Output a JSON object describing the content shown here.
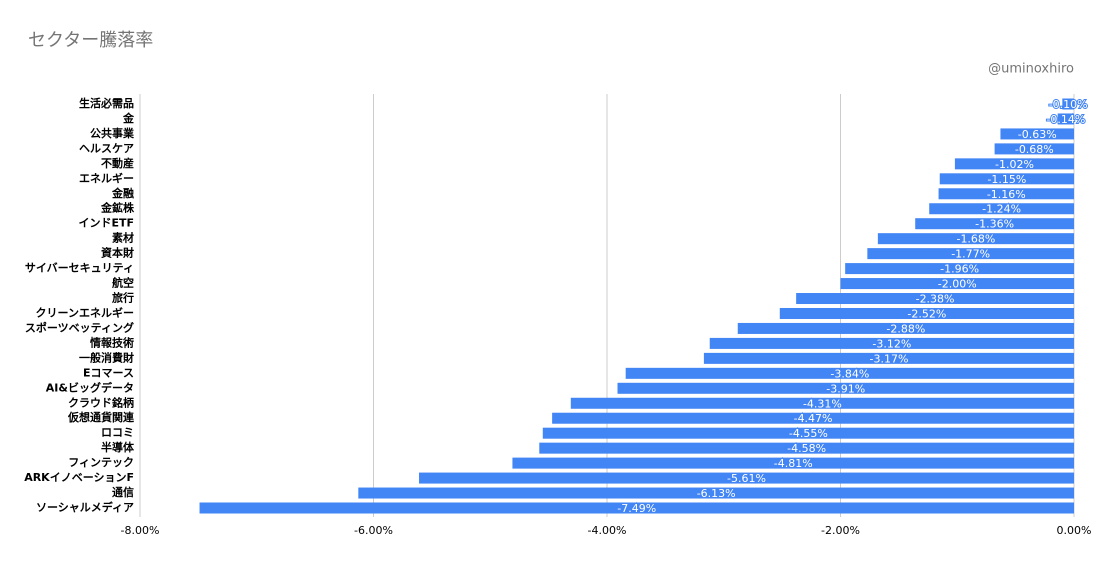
{
  "chart_data": {
    "type": "barh",
    "title": "セクター騰落率",
    "annotation": "@uminoxhiro",
    "categories": [
      "生活必需品",
      "金",
      "公共事業",
      "ヘルスケア",
      "不動産",
      "エネルギー",
      "金融",
      "金鉱株",
      "インドETF",
      "素材",
      "資本財",
      "サイバーセキュリティ",
      "航空",
      "旅行",
      "クリーンエネルギー",
      "スポーツベッティング",
      "情報技術",
      "一般消費財",
      "Eコマース",
      "AI&ビッグデータ",
      "クラウド銘柄",
      "仮想通貨関連",
      "ロコミ",
      "半導体",
      "フィンテック",
      "ARKイノベーションF",
      "通信",
      "ソーシャルメディア"
    ],
    "values": [
      -0.1,
      -0.14,
      -0.63,
      -0.68,
      -1.02,
      -1.15,
      -1.16,
      -1.24,
      -1.36,
      -1.68,
      -1.77,
      -1.96,
      -2.0,
      -2.38,
      -2.52,
      -2.88,
      -3.12,
      -3.17,
      -3.84,
      -3.91,
      -4.31,
      -4.47,
      -4.55,
      -4.58,
      -4.81,
      -5.61,
      -6.13,
      -7.49
    ],
    "value_labels": [
      "-0.10%",
      "-0.14%",
      "-0.63%",
      "-0.68%",
      "-1.02%",
      "-1.15%",
      "-1.16%",
      "-1.24%",
      "-1.36%",
      "-1.68%",
      "-1.77%",
      "-1.96%",
      "-2.00%",
      "-2.38%",
      "-2.52%",
      "-2.88%",
      "-3.12%",
      "-3.17%",
      "-3.84%",
      "-3.91%",
      "-4.31%",
      "-4.47%",
      "-4.55%",
      "-4.58%",
      "-4.81%",
      "-5.61%",
      "-6.13%",
      "-7.49%"
    ],
    "color": "#4285f4",
    "xlim": [
      -8,
      0
    ],
    "xticks": [
      {
        "value": -8,
        "label": "-8.00%"
      },
      {
        "value": -6,
        "label": "-6.00%"
      },
      {
        "value": -4,
        "label": "-4.00%"
      },
      {
        "value": -2,
        "label": "-2.00%"
      },
      {
        "value": 0,
        "label": "0.00%"
      }
    ],
    "grid": true
  }
}
